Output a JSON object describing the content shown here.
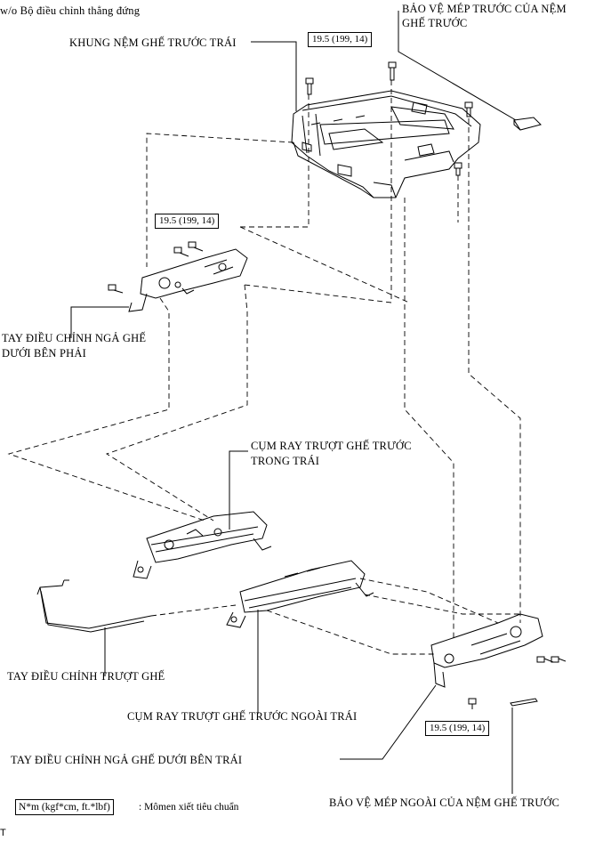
{
  "header_note": "w/o Bộ điều chỉnh thẳng đứng",
  "labels": {
    "front_cushion_protector": [
      "BẢO VỆ MÉP TRƯỚC CỦA NỆM",
      "GHẾ TRƯỚC"
    ],
    "left_front_cushion_frame": "KHUNG NỆM GHẾ TRƯỚC TRÁI",
    "lower_right_recliner_lever": [
      "TAY ĐIỀU CHỈNH NGẢ GHẾ",
      "DƯỚI BÊN PHẢI"
    ],
    "inner_slide_rail": [
      "CỤM RAY TRƯỢT GHẾ TRƯỚC",
      "TRONG TRÁI"
    ],
    "slide_adjust_lever": "TAY ĐIỀU CHỈNH TRƯỢT GHẾ",
    "outer_slide_rail": "CỤM RAY TRƯỢT GHẾ TRƯỚC NGOÀI TRÁI",
    "lower_left_recliner_lever": "TAY ĐIỀU CHỈNH NGẢ GHẾ DƯỚI BÊN TRÁI",
    "outer_cushion_protector": "BẢO VỆ MÉP NGOÀI CỦA NỆM GHẾ TRƯỚC"
  },
  "torque_specs": [
    "19.5 (199, 14)",
    "19.5 (199, 14)",
    "19.5 (199, 14)"
  ],
  "legend": {
    "unit": "N*m (kgf*cm, ft.*lbf)",
    "meaning": ": Mômen xiết tiêu chuẩn"
  },
  "corner_mark": "T"
}
